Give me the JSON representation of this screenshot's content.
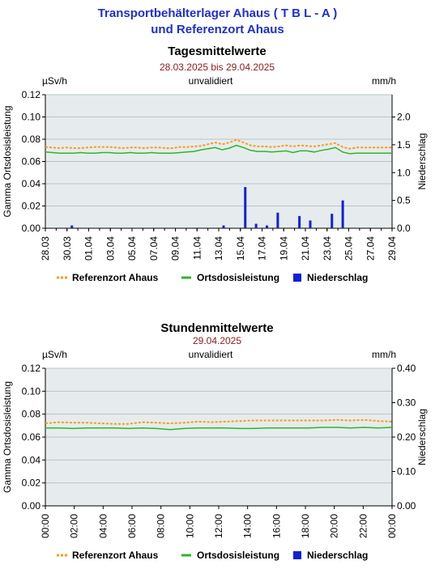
{
  "title_line1": "Transportbehälterlager Ahaus ( T B L - A )",
  "title_line2": "und Referenzort Ahaus",
  "colors": {
    "referenz": "#ff9a1a",
    "orts": "#2db52d",
    "nieder": "#1020d8",
    "plot_bg": "#e6eced",
    "grid": "#b9c3c6"
  },
  "legend": {
    "referenz": "Referenzort Ahaus",
    "orts": "Ortsdosisleistung",
    "nieder": "Niederschlag"
  },
  "chart_data": [
    {
      "type": "line",
      "title": "Tagesmittelwerte",
      "subtitle": "28.03.2025 bis 29.04.2025",
      "status": "unvalidiert",
      "y_unit": "µSv/h",
      "y2_unit": "mm/h",
      "ylabel": "Gamma Ortsdosisleistung",
      "y2label": "Niederschlag",
      "ylim": [
        0,
        0.12
      ],
      "y_ticks": [
        "0.00",
        "0.02",
        "0.04",
        "0.06",
        "0.08",
        "0.10",
        "0.12"
      ],
      "y2lim": [
        0,
        2.4
      ],
      "y2_ticks": [
        "0.0",
        "0.5",
        "1.0",
        "1.5",
        "2.0"
      ],
      "x_ticks": [
        "28.03",
        "30.03",
        "01.04",
        "03.04",
        "05.04",
        "07.04",
        "09.04",
        "11.04",
        "13.04",
        "15.04",
        "17.04",
        "19.04",
        "21.04",
        "23.04",
        "25.04",
        "27.04",
        "29.04"
      ],
      "series": [
        {
          "name": "Referenzort Ahaus",
          "values": [
            0.073,
            0.0725,
            0.072,
            0.0725,
            0.072,
            0.072,
            0.0725,
            0.073,
            0.073,
            0.073,
            0.0725,
            0.072,
            0.0725,
            0.0725,
            0.072,
            0.0725,
            0.0725,
            0.072,
            0.072,
            0.073,
            0.073,
            0.0735,
            0.074,
            0.0755,
            0.077,
            0.0755,
            0.077,
            0.0795,
            0.077,
            0.0745,
            0.0735,
            0.0735,
            0.073,
            0.0735,
            0.0745,
            0.0735,
            0.0745,
            0.074,
            0.0735,
            0.0745,
            0.0755,
            0.0765,
            0.073,
            0.0715,
            0.0725,
            0.0725,
            0.0725,
            0.0725,
            0.0725,
            0.0725
          ]
        },
        {
          "name": "Ortsdosisleistung",
          "values": [
            0.0685,
            0.068,
            0.0675,
            0.0675,
            0.0675,
            0.068,
            0.0675,
            0.0675,
            0.068,
            0.068,
            0.0675,
            0.0675,
            0.068,
            0.0675,
            0.0675,
            0.068,
            0.0675,
            0.0675,
            0.0675,
            0.068,
            0.0685,
            0.069,
            0.0705,
            0.0715,
            0.0725,
            0.0705,
            0.072,
            0.0745,
            0.0725,
            0.07,
            0.069,
            0.069,
            0.0685,
            0.069,
            0.0695,
            0.068,
            0.0695,
            0.0695,
            0.0685,
            0.07,
            0.071,
            0.0725,
            0.0685,
            0.067,
            0.0675,
            0.0675,
            0.0675,
            0.0675,
            0.0675,
            0.0675
          ]
        },
        {
          "name": "Niederschlag",
          "axis": "y2",
          "type": "bar",
          "x": [
            "30.03",
            "13.04",
            "15.04",
            "16.04",
            "17.04",
            "18.04",
            "20.04",
            "21.04",
            "23.04",
            "24.04"
          ],
          "values": [
            0.05,
            0.05,
            0.74,
            0.08,
            0.05,
            0.28,
            0.22,
            0.14,
            0.26,
            0.5
          ]
        }
      ]
    },
    {
      "type": "line",
      "title": "Stundenmittelwerte",
      "subtitle": "29.04.2025",
      "status": "unvalidiert",
      "y_unit": "µSv/h",
      "y2_unit": "mm/h",
      "ylabel": "Gamma Ortsdosisleistung",
      "y2label": "Niederschlag",
      "ylim": [
        0,
        0.12
      ],
      "y_ticks": [
        "0.00",
        "0.02",
        "0.04",
        "0.06",
        "0.08",
        "0.10",
        "0.12"
      ],
      "y2lim": [
        0,
        0.4
      ],
      "y2_ticks": [
        "0.00",
        "0.10",
        "0.20",
        "0.30",
        "0.40"
      ],
      "x_ticks": [
        "00:00",
        "02:00",
        "04:00",
        "06:00",
        "08:00",
        "10:00",
        "12:00",
        "14:00",
        "16:00",
        "18:00",
        "20:00",
        "22:00",
        "00:00"
      ],
      "series": [
        {
          "name": "Referenzort Ahaus",
          "values": [
            0.072,
            0.073,
            0.0725,
            0.0725,
            0.072,
            0.0715,
            0.0715,
            0.073,
            0.0725,
            0.072,
            0.0725,
            0.0735,
            0.073,
            0.0735,
            0.074,
            0.0745,
            0.0745,
            0.0745,
            0.0745,
            0.0745,
            0.0745,
            0.075,
            0.0745,
            0.075,
            0.074,
            0.0735
          ]
        },
        {
          "name": "Ortsdosisleistung",
          "values": [
            0.068,
            0.068,
            0.0675,
            0.068,
            0.068,
            0.068,
            0.0675,
            0.068,
            0.0675,
            0.0665,
            0.0675,
            0.068,
            0.068,
            0.068,
            0.0675,
            0.0675,
            0.068,
            0.068,
            0.068,
            0.068,
            0.0685,
            0.0685,
            0.068,
            0.0685,
            0.068,
            0.0685
          ]
        },
        {
          "name": "Niederschlag",
          "axis": "y2",
          "type": "bar",
          "x": [],
          "values": []
        }
      ]
    }
  ]
}
